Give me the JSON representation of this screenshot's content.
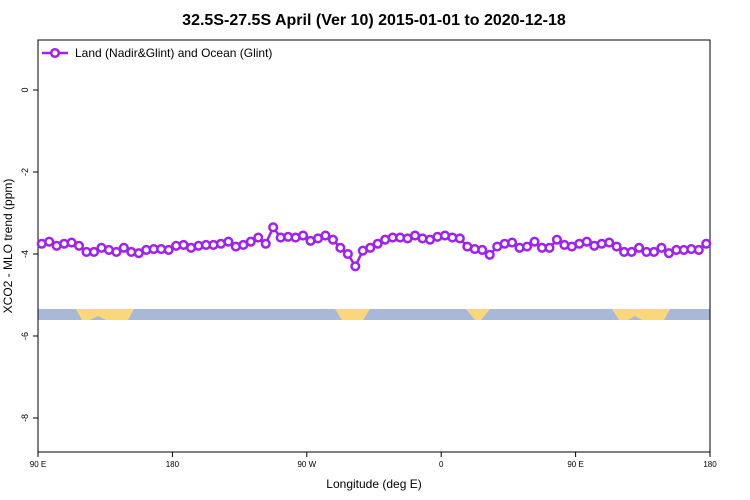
{
  "chart_data": {
    "type": "line",
    "title": "32.5S-27.5S April (Ver 10)   2015-01-01 to 2020-12-18",
    "x_label": "Longitude (deg E)",
    "y_label": "XCO2 - MLO trend (ppm)",
    "legend_position": "top-left",
    "xlim": [
      90,
      540
    ],
    "xticks": [
      {
        "value": 90,
        "label": "90 E"
      },
      180,
      {
        "value": 270,
        "label": "90 W"
      },
      {
        "value": 360,
        "label": "0"
      },
      {
        "value": 450,
        "label": "90 E"
      },
      {
        "value": 540,
        "label": "180"
      }
    ],
    "ylim": [
      -8.83,
      1.22
    ],
    "yticks": [
      0,
      -2,
      -4,
      -6,
      -8
    ],
    "x": [
      92.5,
      97.5,
      102.5,
      107.5,
      112.5,
      117.5,
      122.5,
      127.5,
      132.5,
      137.5,
      142.5,
      147.5,
      152.5,
      157.5,
      162.5,
      167.5,
      172.5,
      177.5,
      182.5,
      187.5,
      192.5,
      197.5,
      202.5,
      207.5,
      212.5,
      217.5,
      222.5,
      227.5,
      232.5,
      237.5,
      242.5,
      247.5,
      252.5,
      257.5,
      262.5,
      267.5,
      272.5,
      277.5,
      282.5,
      287.5,
      292.5,
      297.5,
      302.5,
      307.5,
      312.5,
      317.5,
      322.5,
      327.5,
      332.5,
      337.5,
      342.5,
      347.5,
      352.5,
      357.5,
      362.5,
      367.5,
      372.5,
      377.5,
      382.5,
      387.5,
      392.5,
      397.5,
      402.5,
      407.5,
      412.5,
      417.5,
      422.5,
      427.5,
      432.5,
      437.5,
      442.5,
      447.5,
      452.5,
      457.5,
      462.5,
      467.5,
      472.5,
      477.5,
      482.5,
      487.5,
      492.5,
      497.5,
      502.5,
      507.5,
      512.5,
      517.5,
      522.5,
      527.5,
      532.5,
      537.5
    ],
    "series": [
      {
        "name": "Land (Nadir&Glint) and Ocean (Glint)",
        "color": "#a020f0",
        "values": [
          -3.75,
          -3.7,
          -3.8,
          -3.75,
          -3.72,
          -3.8,
          -3.95,
          -3.95,
          -3.85,
          -3.9,
          -3.95,
          -3.85,
          -3.95,
          -3.98,
          -3.9,
          -3.88,
          -3.88,
          -3.9,
          -3.8,
          -3.78,
          -3.85,
          -3.8,
          -3.78,
          -3.78,
          -3.75,
          -3.7,
          -3.82,
          -3.78,
          -3.7,
          -3.6,
          -3.75,
          -3.35,
          -3.6,
          -3.58,
          -3.6,
          -3.55,
          -3.68,
          -3.62,
          -3.55,
          -3.65,
          -3.85,
          -4.0,
          -4.3,
          -3.92,
          -3.85,
          -3.75,
          -3.65,
          -3.6,
          -3.6,
          -3.62,
          -3.55,
          -3.62,
          -3.65,
          -3.58,
          -3.55,
          -3.6,
          -3.62,
          -3.82,
          -3.88,
          -3.9,
          -4.02,
          -3.82,
          -3.75,
          -3.72,
          -3.85,
          -3.82,
          -3.7,
          -3.85,
          -3.85,
          -3.65,
          -3.78,
          -3.82,
          -3.75,
          -3.7,
          -3.8,
          -3.75,
          -3.72,
          -3.82,
          -3.95,
          -3.95,
          -3.85,
          -3.95,
          -3.95,
          -3.85,
          -3.98,
          -3.9,
          -3.9,
          -3.88,
          -3.9,
          -3.75
        ]
      }
    ]
  }
}
